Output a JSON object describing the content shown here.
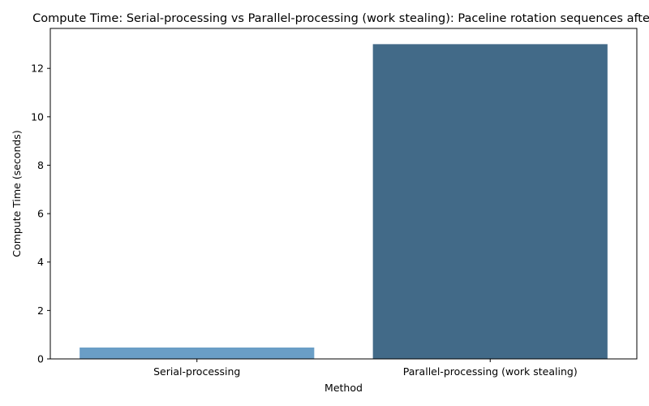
{
  "chart_data": {
    "type": "bar",
    "title": "Compute Time: Serial-processing vs Parallel-processing (work stealing): Paceline rotation sequences after",
    "xlabel": "Method",
    "ylabel": "Compute Time (seconds)",
    "categories": [
      "Serial-processing",
      "Parallel-processing (work stealing)"
    ],
    "values": [
      0.47,
      13.0
    ],
    "colors": [
      "#6a9ec6",
      "#426a88"
    ],
    "ylim": [
      0,
      13.65
    ],
    "yticks": [
      0,
      2,
      4,
      6,
      8,
      10,
      12
    ],
    "grid": false,
    "legend": "none"
  }
}
